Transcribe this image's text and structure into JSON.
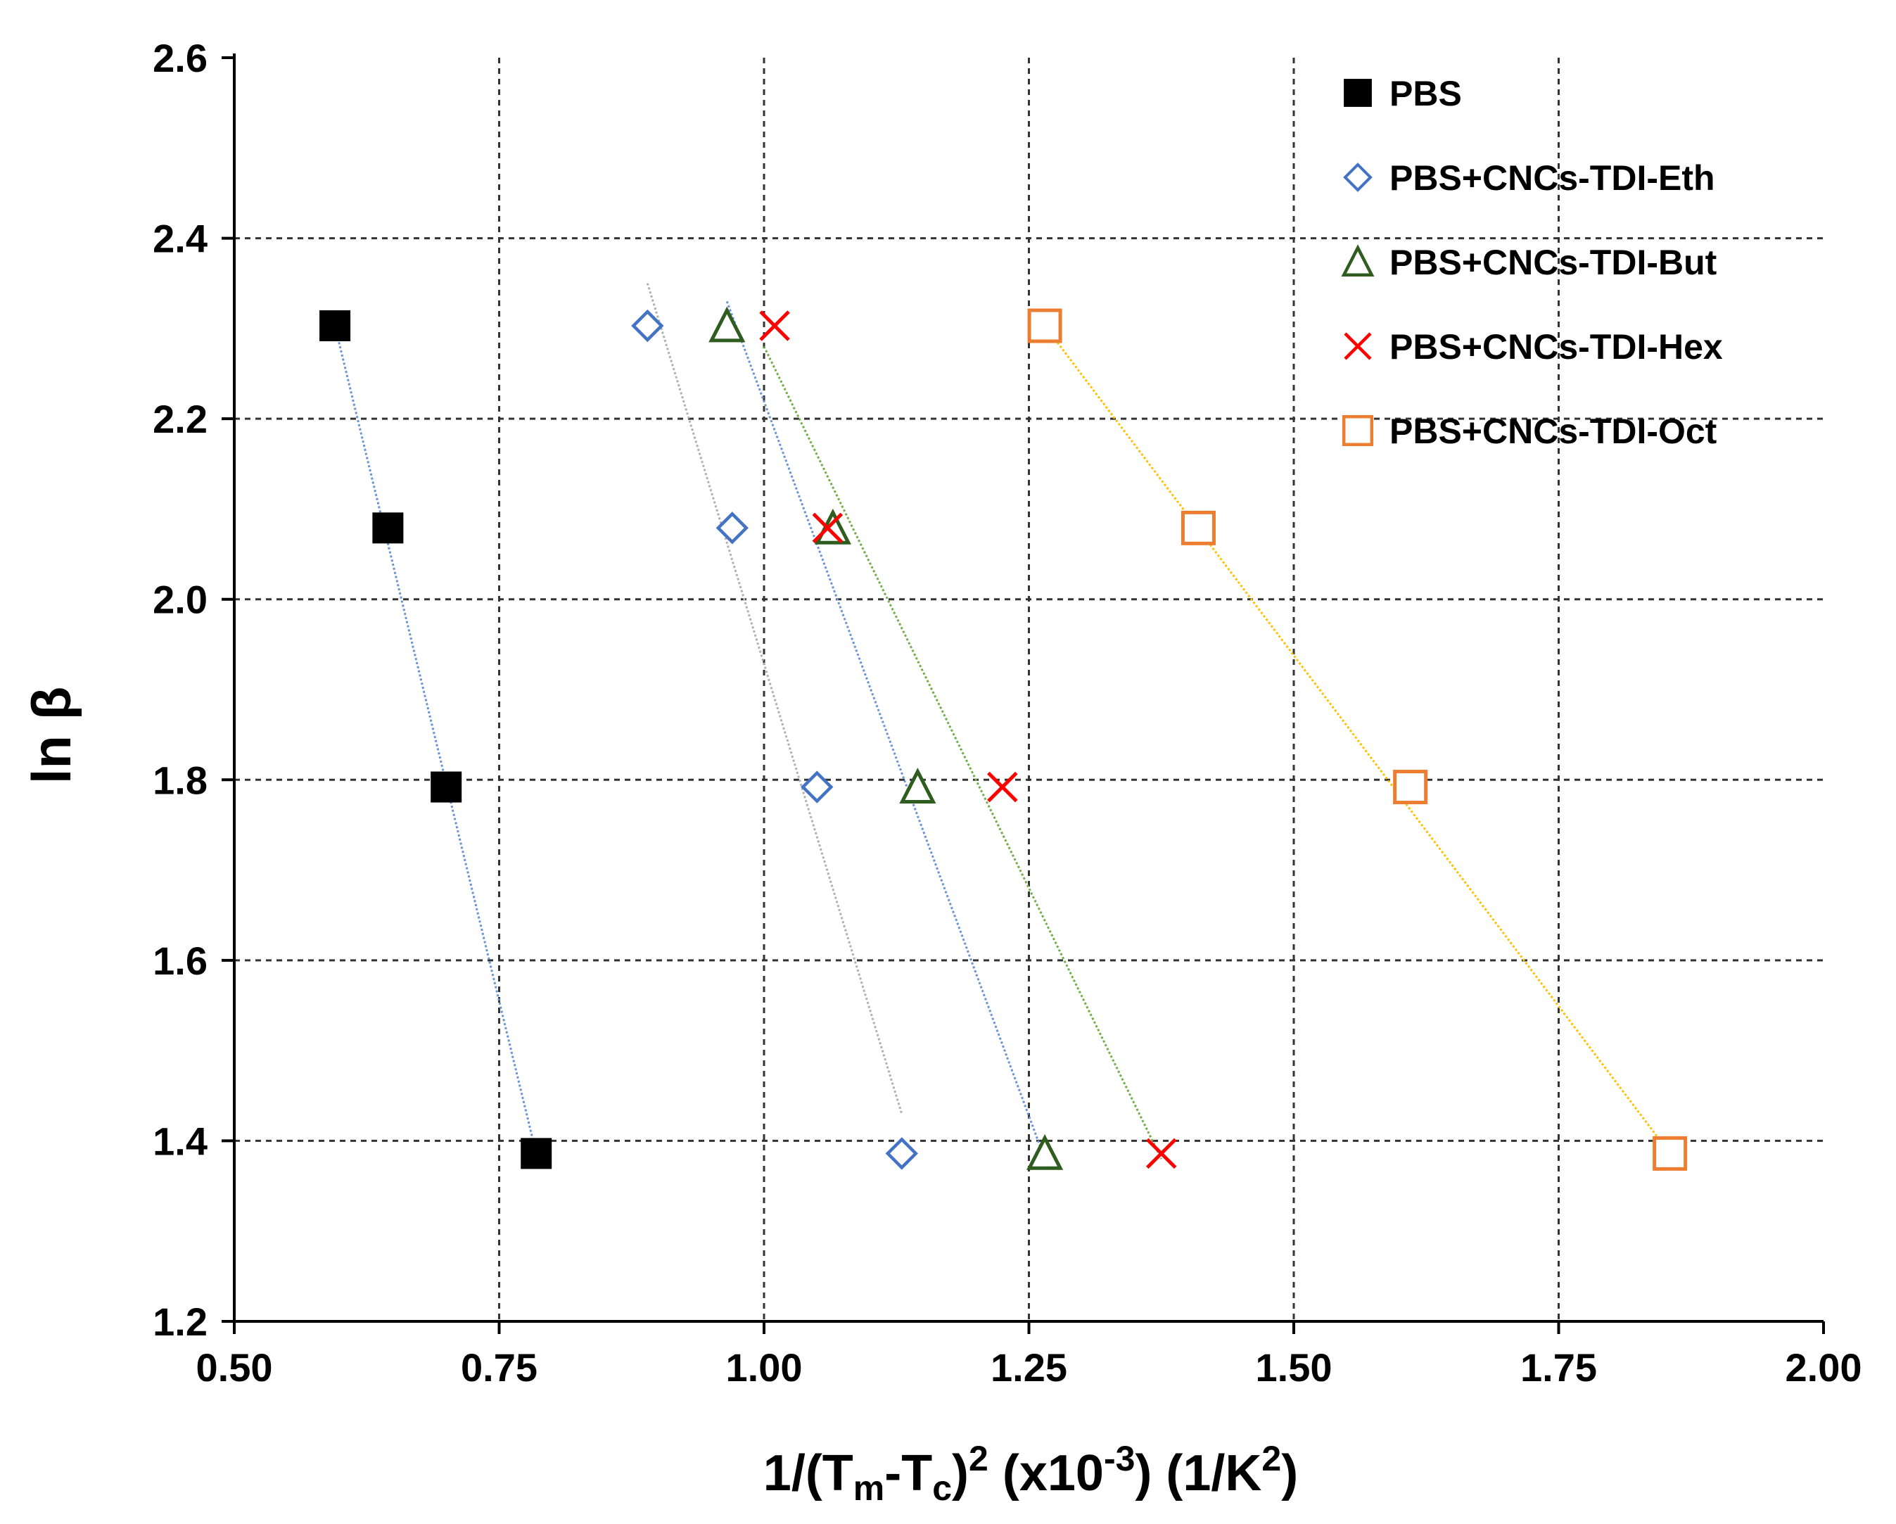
{
  "chart_data": {
    "type": "scatter",
    "title": "",
    "xlabel": {
      "pre": "1/(T",
      "sub_m": "m",
      "mid": "-T",
      "sub_c": "c",
      "close": ")",
      "sup_2": "2",
      "unit1_pre": " (x10",
      "unit1_sup": "-3",
      "unit1_post": ") (1/K",
      "unit2_sup": "2",
      "unit2_post": ")"
    },
    "ylabel": "ln β",
    "xlim": [
      0.5,
      2.0
    ],
    "ylim": [
      1.2,
      2.6
    ],
    "xticks": [
      "0.50",
      "0.75",
      "1.00",
      "1.25",
      "1.50",
      "1.75",
      "2.00"
    ],
    "yticks": [
      "1.2",
      "1.4",
      "1.6",
      "1.8",
      "2.0",
      "2.2",
      "2.4",
      "2.6"
    ],
    "grid": true,
    "legend_position": "top-right",
    "series": [
      {
        "name": "PBS",
        "marker": "filled-square",
        "color": "#000000",
        "x": [
          0.595,
          0.645,
          0.7,
          0.785
        ],
        "y": [
          2.303,
          2.079,
          1.792,
          1.386
        ],
        "trendline": {
          "color": "#6a93d4",
          "x": [
            0.595,
            0.785
          ],
          "y": [
            2.303,
            1.386
          ]
        }
      },
      {
        "name": "PBS+CNCs-TDI-Eth",
        "marker": "open-diamond",
        "color": "#4472c4",
        "x": [
          0.89,
          0.97,
          1.05,
          1.13
        ],
        "y": [
          2.303,
          2.079,
          1.792,
          1.386
        ],
        "trendline": {
          "color": "#b0b0b0",
          "x": [
            0.89,
            1.13
          ],
          "y": [
            2.35,
            1.43
          ]
        }
      },
      {
        "name": "PBS+CNCs-TDI-But",
        "marker": "open-triangle",
        "color": "#2e5d1f",
        "x": [
          0.965,
          1.065,
          1.145,
          1.265
        ],
        "y": [
          2.303,
          2.079,
          1.792,
          1.386
        ],
        "trendline": {
          "color": "#6a93d4",
          "x": [
            0.965,
            1.265
          ],
          "y": [
            2.33,
            1.38
          ]
        }
      },
      {
        "name": "PBS+CNCs-TDI-Hex",
        "marker": "cross",
        "color": "#ff0000",
        "x": [
          1.01,
          1.06,
          1.225,
          1.375
        ],
        "y": [
          2.303,
          2.079,
          1.792,
          1.386
        ],
        "trendline": {
          "color": "#70ad47",
          "x": [
            1.0,
            1.375
          ],
          "y": [
            2.28,
            1.38
          ]
        }
      },
      {
        "name": "PBS+CNCs-TDI-Oct",
        "marker": "open-square",
        "color": "#ed7d31",
        "x": [
          1.265,
          1.41,
          1.61,
          1.855
        ],
        "y": [
          2.303,
          2.079,
          1.792,
          1.386
        ],
        "trendline": {
          "color": "#ffc000",
          "x": [
            1.265,
            1.855
          ],
          "y": [
            2.303,
            1.386
          ]
        }
      }
    ]
  }
}
